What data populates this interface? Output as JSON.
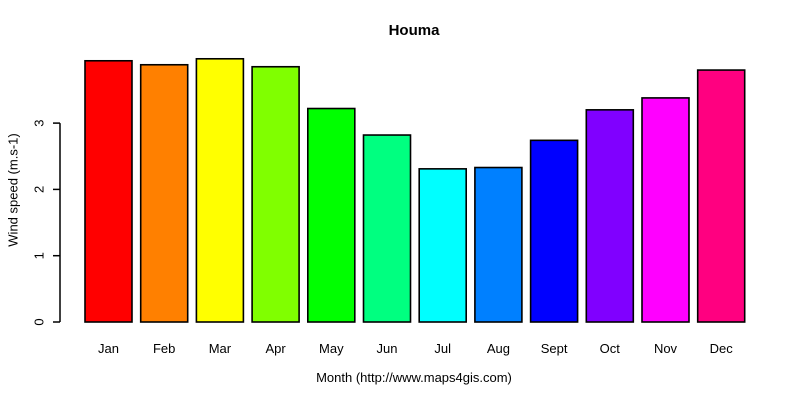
{
  "chart_data": {
    "type": "bar",
    "title": "Houma",
    "xlabel": "Month (http://www.maps4gis.com)",
    "ylabel": "Wind speed (m.s-1)",
    "categories": [
      "Jan",
      "Feb",
      "Mar",
      "Apr",
      "May",
      "Jun",
      "Jul",
      "Aug",
      "Sept",
      "Oct",
      "Nov",
      "Dec"
    ],
    "values": [
      3.94,
      3.88,
      3.97,
      3.85,
      3.22,
      2.82,
      2.31,
      2.33,
      2.74,
      3.2,
      3.38,
      3.8
    ],
    "colors": [
      "#FF0000",
      "#FF8000",
      "#FFFF00",
      "#80FF00",
      "#00FF00",
      "#00FF80",
      "#00FFFF",
      "#0080FF",
      "#0000FF",
      "#8000FF",
      "#FF00FF",
      "#FF0080"
    ],
    "bar_border_color": "#000000",
    "axis_color": "#000000",
    "text_color": "#000000",
    "background": "#FFFFFF",
    "yticks": [
      0,
      1,
      2,
      3
    ],
    "ylim": [
      0,
      3.97
    ],
    "grid": false,
    "legend": "none"
  }
}
